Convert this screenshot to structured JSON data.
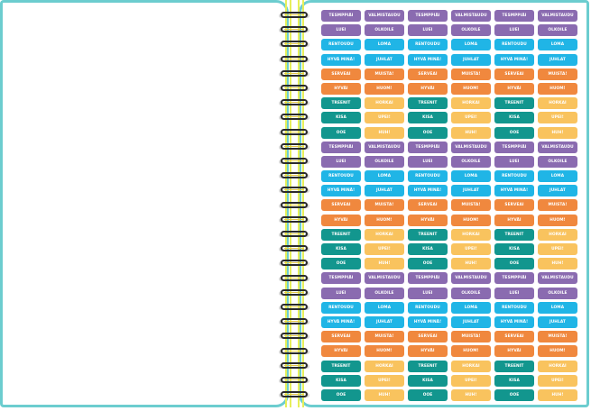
{
  "colors": {
    "purple": "#8a6bb0",
    "blue": "#20b5e6",
    "orange": "#f0883e",
    "teal": "#12968e",
    "yellow": "#f9c35e",
    "page_border": "#6ccdcf",
    "spiral_line": "#e7ef5a"
  },
  "stickers": [
    [
      {
        "label": "TESMPPIÄI",
        "color": "#8a6bb0"
      },
      {
        "label": "VALMISTAUDU",
        "color": "#8a6bb0"
      },
      {
        "label": "TESMPPIÄI",
        "color": "#8a6bb0"
      },
      {
        "label": "VALMISTAUDU",
        "color": "#8a6bb0"
      },
      {
        "label": "TESMPPIÄI",
        "color": "#8a6bb0"
      },
      {
        "label": "VALMISTAUDU",
        "color": "#8a6bb0"
      }
    ],
    [
      {
        "label": "LUEI",
        "color": "#8a6bb0"
      },
      {
        "label": "OLKOILE",
        "color": "#8a6bb0"
      },
      {
        "label": "LUEI",
        "color": "#8a6bb0"
      },
      {
        "label": "OLKOILE",
        "color": "#8a6bb0"
      },
      {
        "label": "LUEI",
        "color": "#8a6bb0"
      },
      {
        "label": "OLKOILE",
        "color": "#8a6bb0"
      }
    ],
    [
      {
        "label": "RENTOUDU",
        "color": "#20b5e6"
      },
      {
        "label": "LOMA",
        "color": "#20b5e6"
      },
      {
        "label": "RENTOUDU",
        "color": "#20b5e6"
      },
      {
        "label": "LOMA",
        "color": "#20b5e6"
      },
      {
        "label": "RENTOUDU",
        "color": "#20b5e6"
      },
      {
        "label": "LOMA",
        "color": "#20b5e6"
      }
    ],
    [
      {
        "label": "HYVÄ MINÄ!",
        "color": "#20b5e6"
      },
      {
        "label": "JUHLAT",
        "color": "#20b5e6"
      },
      {
        "label": "HYVÄ MINÄ!",
        "color": "#20b5e6"
      },
      {
        "label": "JUHLAT",
        "color": "#20b5e6"
      },
      {
        "label": "HYVÄ MINÄ!",
        "color": "#20b5e6"
      },
      {
        "label": "JUHLAT",
        "color": "#20b5e6"
      }
    ],
    [
      {
        "label": "SERVEAI",
        "color": "#f0883e"
      },
      {
        "label": "MUISTA!",
        "color": "#f0883e"
      },
      {
        "label": "SERVEAI",
        "color": "#f0883e"
      },
      {
        "label": "MUISTA!",
        "color": "#f0883e"
      },
      {
        "label": "SERVEAI",
        "color": "#f0883e"
      },
      {
        "label": "MUISTA!",
        "color": "#f0883e"
      }
    ],
    [
      {
        "label": "HYVÄI",
        "color": "#f0883e"
      },
      {
        "label": "HUOM!",
        "color": "#f0883e"
      },
      {
        "label": "HYVÄI",
        "color": "#f0883e"
      },
      {
        "label": "HUOM!",
        "color": "#f0883e"
      },
      {
        "label": "HYVÄI",
        "color": "#f0883e"
      },
      {
        "label": "HUOM!",
        "color": "#f0883e"
      }
    ],
    [
      {
        "label": "TREENIT",
        "color": "#12968e"
      },
      {
        "label": "HORKAI",
        "color": "#f9c35e"
      },
      {
        "label": "TREENIT",
        "color": "#12968e"
      },
      {
        "label": "HORKAI",
        "color": "#f9c35e"
      },
      {
        "label": "TREENIT",
        "color": "#12968e"
      },
      {
        "label": "HORKAI",
        "color": "#f9c35e"
      }
    ],
    [
      {
        "label": "KISA",
        "color": "#12968e"
      },
      {
        "label": "UPEI!",
        "color": "#f9c35e"
      },
      {
        "label": "KISA",
        "color": "#12968e"
      },
      {
        "label": "UPEI!",
        "color": "#f9c35e"
      },
      {
        "label": "KISA",
        "color": "#12968e"
      },
      {
        "label": "UPEI!",
        "color": "#f9c35e"
      }
    ],
    [
      {
        "label": "OOE",
        "color": "#12968e"
      },
      {
        "label": "HUH!",
        "color": "#f9c35e"
      },
      {
        "label": "OOE",
        "color": "#12968e"
      },
      {
        "label": "HUH!",
        "color": "#f9c35e"
      },
      {
        "label": "OOE",
        "color": "#12968e"
      },
      {
        "label": "HUH!",
        "color": "#f9c35e"
      }
    ],
    [
      {
        "label": "TESMPPIÄI",
        "color": "#8a6bb0"
      },
      {
        "label": "VALMISTAUDU",
        "color": "#8a6bb0"
      },
      {
        "label": "TESMPPIÄI",
        "color": "#8a6bb0"
      },
      {
        "label": "VALMISTAUDU",
        "color": "#8a6bb0"
      },
      {
        "label": "TESMPPIÄI",
        "color": "#8a6bb0"
      },
      {
        "label": "VALMISTAUDU",
        "color": "#8a6bb0"
      }
    ],
    [
      {
        "label": "LUEI",
        "color": "#8a6bb0"
      },
      {
        "label": "OLKOILE",
        "color": "#8a6bb0"
      },
      {
        "label": "LUEI",
        "color": "#8a6bb0"
      },
      {
        "label": "OLKOILE",
        "color": "#8a6bb0"
      },
      {
        "label": "LUEI",
        "color": "#8a6bb0"
      },
      {
        "label": "OLKOILE",
        "color": "#8a6bb0"
      }
    ],
    [
      {
        "label": "RENTOUDU",
        "color": "#20b5e6"
      },
      {
        "label": "LOMA",
        "color": "#20b5e6"
      },
      {
        "label": "RENTOUDU",
        "color": "#20b5e6"
      },
      {
        "label": "LOMA",
        "color": "#20b5e6"
      },
      {
        "label": "RENTOUDU",
        "color": "#20b5e6"
      },
      {
        "label": "LOMA",
        "color": "#20b5e6"
      }
    ],
    [
      {
        "label": "HYVÄ MINÄ!",
        "color": "#20b5e6"
      },
      {
        "label": "JUHLAT",
        "color": "#20b5e6"
      },
      {
        "label": "HYVÄ MINÄ!",
        "color": "#20b5e6"
      },
      {
        "label": "JUHLAT",
        "color": "#20b5e6"
      },
      {
        "label": "HYVÄ MINÄ!",
        "color": "#20b5e6"
      },
      {
        "label": "JUHLAT",
        "color": "#20b5e6"
      }
    ],
    [
      {
        "label": "SERVEAI",
        "color": "#f0883e"
      },
      {
        "label": "MUISTA!",
        "color": "#f0883e"
      },
      {
        "label": "SERVEAI",
        "color": "#f0883e"
      },
      {
        "label": "MUISTA!",
        "color": "#f0883e"
      },
      {
        "label": "SERVEAI",
        "color": "#f0883e"
      },
      {
        "label": "MUISTA!",
        "color": "#f0883e"
      }
    ],
    [
      {
        "label": "HYVÄI",
        "color": "#f0883e"
      },
      {
        "label": "HUOM!",
        "color": "#f0883e"
      },
      {
        "label": "HYVÄI",
        "color": "#f0883e"
      },
      {
        "label": "HUOM!",
        "color": "#f0883e"
      },
      {
        "label": "HYVÄI",
        "color": "#f0883e"
      },
      {
        "label": "HUOM!",
        "color": "#f0883e"
      }
    ],
    [
      {
        "label": "TREENIT",
        "color": "#12968e"
      },
      {
        "label": "HORKAI",
        "color": "#f9c35e"
      },
      {
        "label": "TREENIT",
        "color": "#12968e"
      },
      {
        "label": "HORKAI",
        "color": "#f9c35e"
      },
      {
        "label": "TREENIT",
        "color": "#12968e"
      },
      {
        "label": "HORKAI",
        "color": "#f9c35e"
      }
    ],
    [
      {
        "label": "KISA",
        "color": "#12968e"
      },
      {
        "label": "UPEI!",
        "color": "#f9c35e"
      },
      {
        "label": "KISA",
        "color": "#12968e"
      },
      {
        "label": "UPEI!",
        "color": "#f9c35e"
      },
      {
        "label": "KISA",
        "color": "#12968e"
      },
      {
        "label": "UPEI!",
        "color": "#f9c35e"
      }
    ],
    [
      {
        "label": "OOE",
        "color": "#12968e"
      },
      {
        "label": "HUH!",
        "color": "#f9c35e"
      },
      {
        "label": "OOE",
        "color": "#12968e"
      },
      {
        "label": "HUH!",
        "color": "#f9c35e"
      },
      {
        "label": "OOE",
        "color": "#12968e"
      },
      {
        "label": "HUH!",
        "color": "#f9c35e"
      }
    ],
    [
      {
        "label": "TESMPPIÄI",
        "color": "#8a6bb0"
      },
      {
        "label": "VALMISTAUDU",
        "color": "#8a6bb0"
      },
      {
        "label": "TESMPPIÄI",
        "color": "#8a6bb0"
      },
      {
        "label": "VALMISTAUDU",
        "color": "#8a6bb0"
      },
      {
        "label": "TESMPPIÄI",
        "color": "#8a6bb0"
      },
      {
        "label": "VALMISTAUDU",
        "color": "#8a6bb0"
      }
    ],
    [
      {
        "label": "LUEI",
        "color": "#8a6bb0"
      },
      {
        "label": "OLKOILE",
        "color": "#8a6bb0"
      },
      {
        "label": "LUEI",
        "color": "#8a6bb0"
      },
      {
        "label": "OLKOILE",
        "color": "#8a6bb0"
      },
      {
        "label": "LUEI",
        "color": "#8a6bb0"
      },
      {
        "label": "OLKOILE",
        "color": "#8a6bb0"
      }
    ],
    [
      {
        "label": "RENTOUDU",
        "color": "#20b5e6"
      },
      {
        "label": "LOMA",
        "color": "#20b5e6"
      },
      {
        "label": "RENTOUDU",
        "color": "#20b5e6"
      },
      {
        "label": "LOMA",
        "color": "#20b5e6"
      },
      {
        "label": "RENTOUDU",
        "color": "#20b5e6"
      },
      {
        "label": "LOMA",
        "color": "#20b5e6"
      }
    ],
    [
      {
        "label": "HYVÄ MINÄ!",
        "color": "#20b5e6"
      },
      {
        "label": "JUHLAT",
        "color": "#20b5e6"
      },
      {
        "label": "HYVÄ MINÄ!",
        "color": "#20b5e6"
      },
      {
        "label": "JUHLAT",
        "color": "#20b5e6"
      },
      {
        "label": "HYVÄ MINÄ!",
        "color": "#20b5e6"
      },
      {
        "label": "JUHLAT",
        "color": "#20b5e6"
      }
    ],
    [
      {
        "label": "SERVEAI",
        "color": "#f0883e"
      },
      {
        "label": "MUISTA!",
        "color": "#f0883e"
      },
      {
        "label": "SERVEAI",
        "color": "#f0883e"
      },
      {
        "label": "MUISTA!",
        "color": "#f0883e"
      },
      {
        "label": "SERVEAI",
        "color": "#f0883e"
      },
      {
        "label": "MUISTA!",
        "color": "#f0883e"
      }
    ],
    [
      {
        "label": "HYVÄI",
        "color": "#f0883e"
      },
      {
        "label": "HUOM!",
        "color": "#f0883e"
      },
      {
        "label": "HYVÄI",
        "color": "#f0883e"
      },
      {
        "label": "HUOM!",
        "color": "#f0883e"
      },
      {
        "label": "HYVÄI",
        "color": "#f0883e"
      },
      {
        "label": "HUOM!",
        "color": "#f0883e"
      }
    ],
    [
      {
        "label": "TREENIT",
        "color": "#12968e"
      },
      {
        "label": "HORKAI",
        "color": "#f9c35e"
      },
      {
        "label": "TREENIT",
        "color": "#12968e"
      },
      {
        "label": "HORKAI",
        "color": "#f9c35e"
      },
      {
        "label": "TREENIT",
        "color": "#12968e"
      },
      {
        "label": "HORKAI",
        "color": "#f9c35e"
      }
    ],
    [
      {
        "label": "KISA",
        "color": "#12968e"
      },
      {
        "label": "UPEI!",
        "color": "#f9c35e"
      },
      {
        "label": "KISA",
        "color": "#12968e"
      },
      {
        "label": "UPEI!",
        "color": "#f9c35e"
      },
      {
        "label": "KISA",
        "color": "#12968e"
      },
      {
        "label": "UPEI!",
        "color": "#f9c35e"
      }
    ],
    [
      {
        "label": "OOE",
        "color": "#12968e"
      },
      {
        "label": "HUH!",
        "color": "#f9c35e"
      },
      {
        "label": "OOE",
        "color": "#12968e"
      },
      {
        "label": "HUH!",
        "color": "#f9c35e"
      },
      {
        "label": "OOE",
        "color": "#12968e"
      },
      {
        "label": "HUH!",
        "color": "#f9c35e"
      }
    ]
  ]
}
